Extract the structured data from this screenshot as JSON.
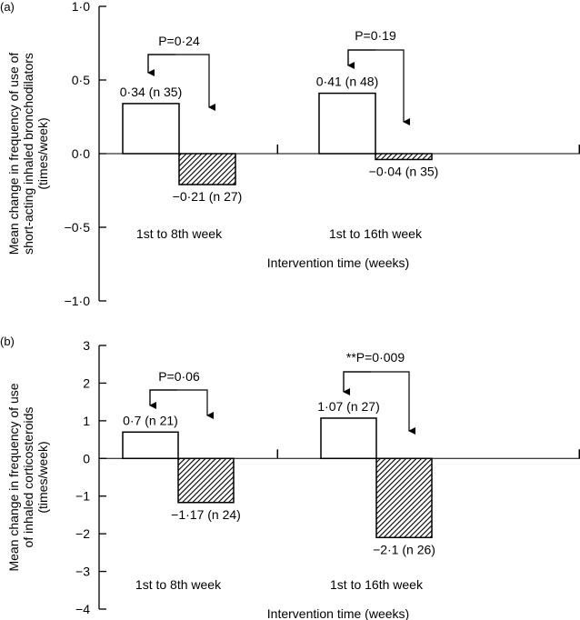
{
  "chart_data": [
    {
      "panel_label": "(a)",
      "type": "bar",
      "ylabel_lines": [
        "Mean change in frequency of use of",
        "short-acting inhaled bronchodilators",
        "(times/week)"
      ],
      "xlabel": "Intervention time (weeks)",
      "ylim": [
        -1.0,
        1.0
      ],
      "yticks": [
        1.0,
        0.5,
        0.0,
        -0.5,
        -1.0
      ],
      "ytick_labels": [
        "1·0",
        "0·5",
        "0·0",
        "−0·5",
        "−1·0"
      ],
      "categories": [
        "1st to 8th week",
        "1st to 16th week"
      ],
      "series": [
        {
          "style": "open",
          "values": [
            0.34,
            0.41
          ],
          "labels": [
            "0·34 (n 35)",
            "0·41 (n 48)"
          ]
        },
        {
          "style": "hatched",
          "values": [
            -0.21,
            -0.04
          ],
          "labels": [
            "−0·21 (n 27)",
            "−0·04 (n 35)"
          ]
        }
      ],
      "comparisons": [
        "P=0·24",
        "P=0·19"
      ]
    },
    {
      "panel_label": "(b)",
      "type": "bar",
      "ylabel_lines": [
        "Mean change in frequency of use",
        "of inhaled corticosteroids",
        "(times/week)"
      ],
      "xlabel": "Intervention time (weeks)",
      "ylim": [
        -4,
        3
      ],
      "yticks": [
        3,
        2,
        1,
        0,
        -1,
        -2,
        -3,
        -4
      ],
      "ytick_labels": [
        "3",
        "2",
        "1",
        "0",
        "−1",
        "−2",
        "−3",
        "−4"
      ],
      "categories": [
        "1st to 8th week",
        "1st to 16th week"
      ],
      "series": [
        {
          "style": "open",
          "values": [
            0.7,
            1.07
          ],
          "labels": [
            "0·7 (n 21)",
            "1·07 (n 27)"
          ]
        },
        {
          "style": "hatched",
          "values": [
            -1.17,
            -2.1
          ],
          "labels": [
            "−1·17 (n 24)",
            "−2·1 (n 26)"
          ]
        }
      ],
      "comparisons": [
        "P=0·06",
        "**P=0·009"
      ]
    }
  ]
}
